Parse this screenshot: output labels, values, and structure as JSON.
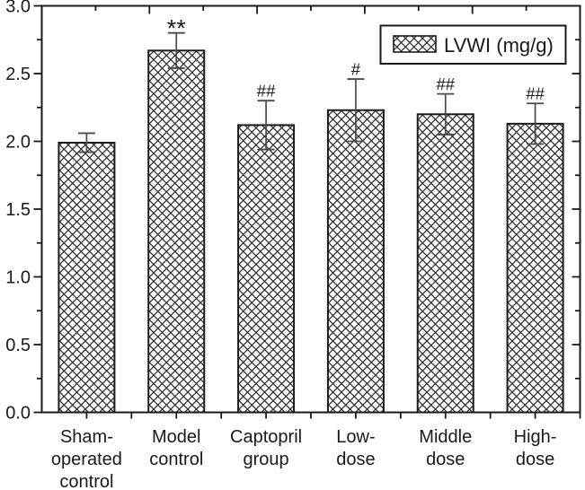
{
  "chart_data": {
    "type": "bar",
    "title": "",
    "categories": [
      [
        "Sham-",
        "operated",
        "control"
      ],
      [
        "Model",
        "control"
      ],
      [
        "Captopril",
        "group"
      ],
      [
        "Low-",
        "dose"
      ],
      [
        "Middle",
        "dose"
      ],
      [
        "High-",
        "dose"
      ]
    ],
    "values": [
      1.99,
      2.67,
      2.12,
      2.23,
      2.2,
      2.13
    ],
    "errors": [
      0.07,
      0.13,
      0.18,
      0.23,
      0.15,
      0.15
    ],
    "significance": [
      "",
      "**",
      "##",
      "#",
      "##",
      "##"
    ],
    "legend": {
      "label": "LVWI (mg/g)",
      "position": "top-right",
      "swatch": "crosshatch"
    },
    "xlabel": "",
    "ylabel": "",
    "ylim": [
      0.0,
      3.0
    ],
    "ytick_labels": [
      "0.0",
      "0.5",
      "1.0",
      "1.5",
      "2.0",
      "2.5",
      "3.0"
    ],
    "ytick_step": 0.5,
    "yminor_step": 0.25,
    "grid": "off",
    "bar_style": {
      "fill": "crosshatch",
      "background": "#ffffff"
    },
    "colors": {
      "axis": "#1a1a1a",
      "hatch": "#2e2e2e",
      "error_bar": "#4a4a4a",
      "text": "#1a1a1a",
      "background": "#ffffff"
    }
  }
}
